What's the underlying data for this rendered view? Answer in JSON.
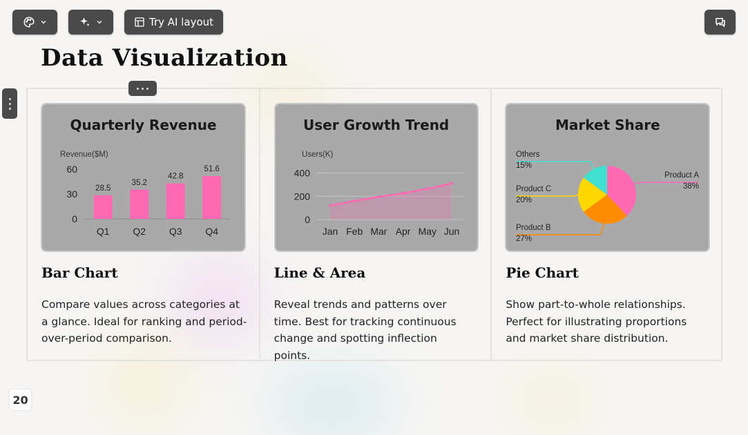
{
  "toolbar": {
    "theme_icon": "palette-icon",
    "ai_icon": "sparkles-icon",
    "layout_icon": "layout-icon",
    "layout_label": "Try AI layout",
    "comment_icon": "comment-icon"
  },
  "slide": {
    "title": "Data Visualization",
    "page_number": "20"
  },
  "cards": [
    {
      "card_title": "Quarterly Revenue",
      "name": "Bar Chart",
      "description": "Compare values across categories at a glance. Ideal for ranking and period-over-period comparison."
    },
    {
      "card_title": "User Growth Trend",
      "name": "Line & Area",
      "description": "Reveal trends and patterns over time. Best for tracking continuous change and spotting inflection points."
    },
    {
      "card_title": "Market Share",
      "name": "Pie Chart",
      "description": "Show part-to-whole relationships. Perfect for illustrating proportions and market share distribution."
    }
  ],
  "chart_data": [
    {
      "type": "bar",
      "title": "Quarterly Revenue",
      "ylabel": "Revenue($M)",
      "categories": [
        "Q1",
        "Q2",
        "Q3",
        "Q4"
      ],
      "values": [
        28.5,
        35.2,
        42.8,
        51.6
      ],
      "yticks": [
        0,
        30,
        60
      ],
      "ylim": [
        0,
        70
      ],
      "color": "#ff69b4",
      "grid": false
    },
    {
      "type": "area",
      "title": "User Growth Trend",
      "ylabel": "Users(K)",
      "categories": [
        "Jan",
        "Feb",
        "Mar",
        "Apr",
        "May",
        "Jun"
      ],
      "values": [
        120,
        160,
        195,
        225,
        265,
        310
      ],
      "yticks": [
        0,
        200,
        400
      ],
      "ylim": [
        0,
        480
      ],
      "color": "#ff69b4",
      "grid": true
    },
    {
      "type": "pie",
      "title": "Market Share",
      "slices": [
        {
          "label": "Product A",
          "value": 38,
          "pct": "38%",
          "color": "#ff69b4"
        },
        {
          "label": "Product B",
          "value": 27,
          "pct": "27%",
          "color": "#ff8c00"
        },
        {
          "label": "Product C",
          "value": 20,
          "pct": "20%",
          "color": "#ffd700"
        },
        {
          "label": "Others",
          "value": 15,
          "pct": "15%",
          "color": "#40e0d0"
        }
      ]
    }
  ]
}
